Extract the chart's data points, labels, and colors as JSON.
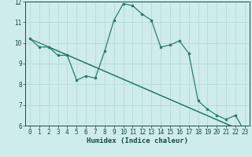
{
  "x": [
    0,
    1,
    2,
    3,
    4,
    5,
    6,
    7,
    8,
    9,
    10,
    11,
    12,
    13,
    14,
    15,
    16,
    17,
    18,
    19,
    20,
    21,
    22,
    23
  ],
  "y_curve": [
    10.2,
    9.8,
    9.8,
    9.4,
    9.4,
    8.2,
    8.4,
    8.3,
    9.6,
    11.1,
    11.9,
    11.8,
    11.4,
    11.1,
    9.8,
    9.9,
    10.1,
    9.5,
    7.2,
    6.8,
    6.5,
    6.3,
    6.5,
    5.7
  ],
  "line_start_x": 0,
  "line_start_y": 10.2,
  "line_end_x": 23,
  "line_end_y": 5.7,
  "line2_start_x": 2,
  "line2_start_y": 9.8,
  "line2_end_x": 23,
  "line2_end_y": 5.7,
  "xlabel": "Humidex (Indice chaleur)",
  "ylim": [
    6,
    12
  ],
  "xlim": [
    -0.5,
    23.5
  ],
  "yticks": [
    6,
    7,
    8,
    9,
    10,
    11,
    12
  ],
  "xticks": [
    0,
    1,
    2,
    3,
    4,
    5,
    6,
    7,
    8,
    9,
    10,
    11,
    12,
    13,
    14,
    15,
    16,
    17,
    18,
    19,
    20,
    21,
    22,
    23
  ],
  "curve_color": "#2d7b6e",
  "line_color": "#2d7b6e",
  "bg_color": "#ceecea",
  "grid_color": "#b8dcda",
  "text_color": "#1a4a44",
  "tick_fontsize": 5.5,
  "xlabel_fontsize": 6.5
}
